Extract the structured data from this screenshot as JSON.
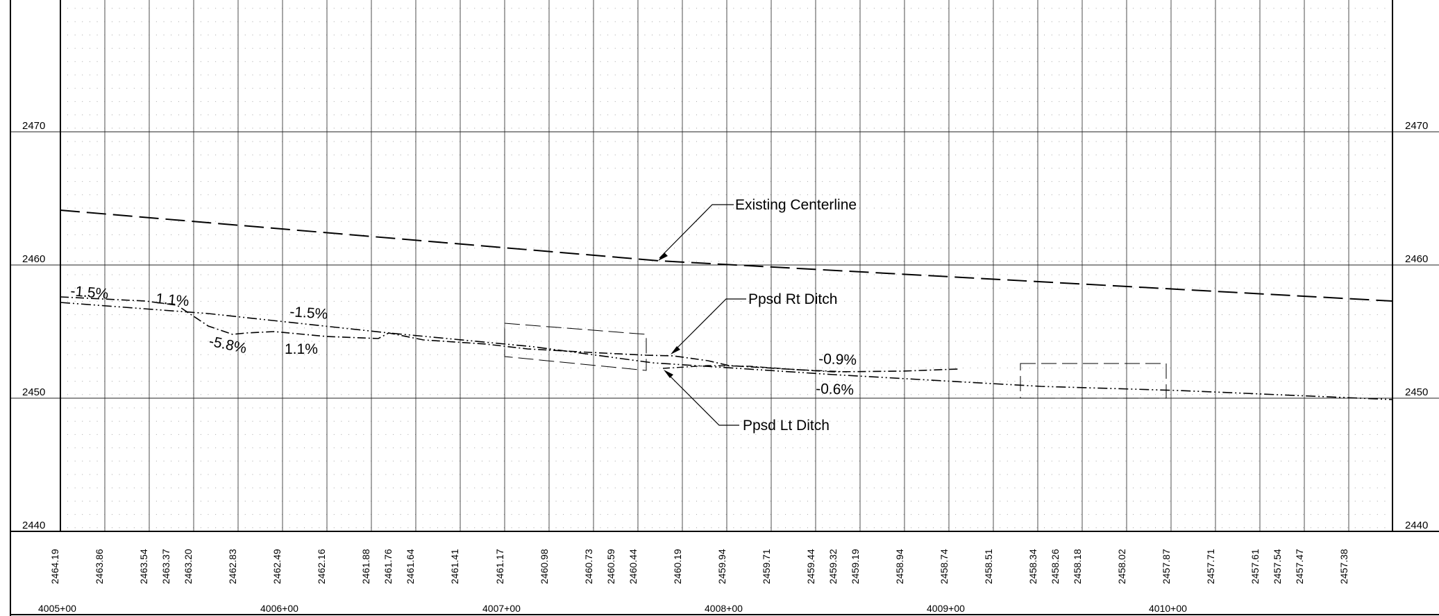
{
  "profile": {
    "elevations": [
      "2440",
      "2450",
      "2460",
      "2470"
    ],
    "stations": [
      "4005+00",
      "4006+00",
      "4007+00",
      "4008+00",
      "4009+00",
      "4010+00"
    ],
    "ground_elevations": [
      "2464.19",
      "2463.86",
      "2463.54",
      "2463.37",
      "2463.20",
      "2462.83",
      "2462.49",
      "2462.16",
      "2461.88",
      "2461.76",
      "2461.64",
      "2461.41",
      "2461.17",
      "2460.98",
      "2460.73",
      "2460.59",
      "2460.44",
      "2460.19",
      "2459.94",
      "2459.71",
      "2459.44",
      "2459.32",
      "2459.19",
      "2458.94",
      "2458.74",
      "2458.51",
      "2458.34",
      "2458.26",
      "2458.18",
      "2458.02",
      "2457.87",
      "2457.71",
      "2457.61",
      "2457.54",
      "2457.47",
      "2457.38"
    ],
    "callouts": {
      "existing_centerline": "Existing Centerline",
      "ppsd_rt_ditch": "Ppsd Rt Ditch",
      "ppsd_lt_ditch": "Ppsd Lt Ditch"
    },
    "grade_labels": [
      "-1.5%",
      "1.1%",
      "-5.8%",
      "-1.5%",
      "1.1%",
      "-0.9%",
      "-0.6%"
    ]
  }
}
